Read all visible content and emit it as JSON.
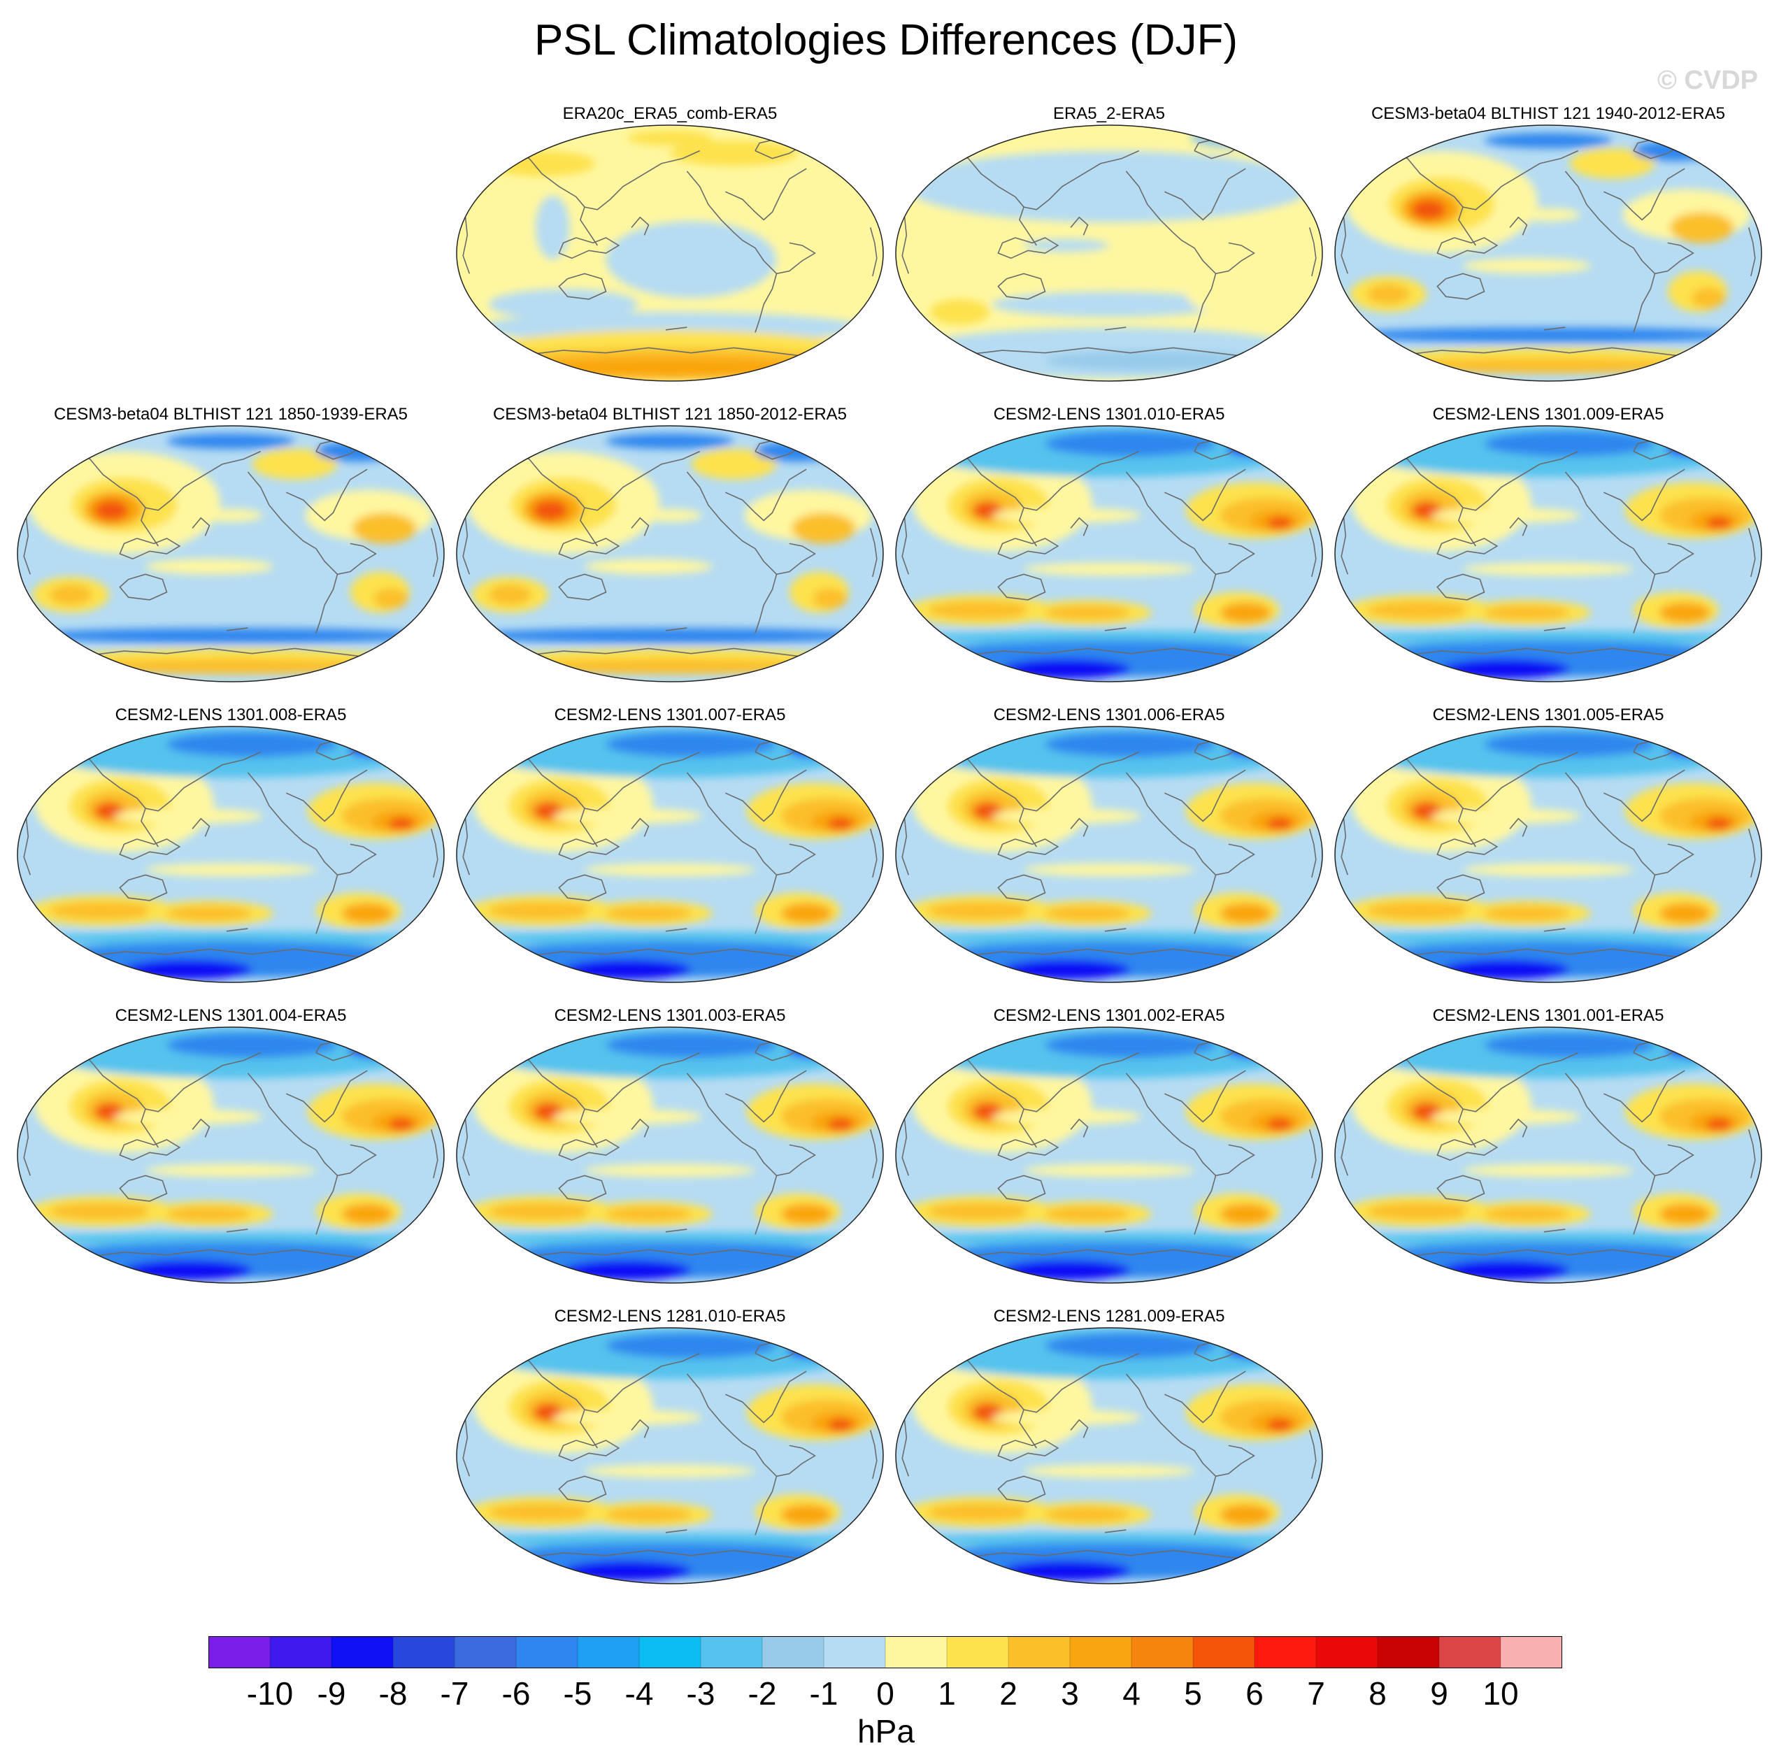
{
  "figure": {
    "title": "PSL Climatologies Differences (DJF)",
    "watermark": "© CVDP"
  },
  "panels": [
    {
      "id": "era20c",
      "title": "ERA20c_ERA5_comb-ERA5",
      "style": "reanalysis"
    },
    {
      "id": "era5_2",
      "title": "ERA5_2-ERA5",
      "style": "reanalysis2"
    },
    {
      "id": "cesm3a",
      "title": "CESM3-beta04 BLTHIST 121 1940-2012-ERA5",
      "style": "cesm3"
    },
    {
      "id": "cesm3b",
      "title": "CESM3-beta04 BLTHIST 121 1850-1939-ERA5",
      "style": "cesm3"
    },
    {
      "id": "cesm3c",
      "title": "CESM3-beta04 BLTHIST 121 1850-2012-ERA5",
      "style": "cesm3"
    },
    {
      "id": "l010",
      "title": "CESM2-LENS 1301.010-ERA5",
      "style": "cesm2"
    },
    {
      "id": "l009",
      "title": "CESM2-LENS 1301.009-ERA5",
      "style": "cesm2"
    },
    {
      "id": "l008",
      "title": "CESM2-LENS 1301.008-ERA5",
      "style": "cesm2"
    },
    {
      "id": "l007",
      "title": "CESM2-LENS 1301.007-ERA5",
      "style": "cesm2"
    },
    {
      "id": "l006",
      "title": "CESM2-LENS 1301.006-ERA5",
      "style": "cesm2"
    },
    {
      "id": "l005",
      "title": "CESM2-LENS 1301.005-ERA5",
      "style": "cesm2"
    },
    {
      "id": "l004",
      "title": "CESM2-LENS 1301.004-ERA5",
      "style": "cesm2"
    },
    {
      "id": "l003",
      "title": "CESM2-LENS 1301.003-ERA5",
      "style": "cesm2"
    },
    {
      "id": "l002",
      "title": "CESM2-LENS 1301.002-ERA5",
      "style": "cesm2"
    },
    {
      "id": "l001",
      "title": "CESM2-LENS 1301.001-ERA5",
      "style": "cesm2"
    },
    {
      "id": "k010",
      "title": "CESM2-LENS 1281.010-ERA5",
      "style": "cesm2"
    },
    {
      "id": "k009",
      "title": "CESM2-LENS 1281.009-ERA5",
      "style": "cesm2"
    }
  ],
  "colorbar": {
    "unit": "hPa",
    "labels": [
      "-10",
      "-9",
      "-8",
      "-7",
      "-6",
      "-5",
      "-4",
      "-3",
      "-2",
      "-1",
      "0",
      "1",
      "2",
      "3",
      "4",
      "5",
      "6",
      "7",
      "8",
      "9",
      "10"
    ],
    "colors": [
      "#7b1fe8",
      "#3f18ee",
      "#1010f5",
      "#2847dd",
      "#3a6ade",
      "#2f86ee",
      "#1fa0f5",
      "#0bbcf2",
      "#55c3ee",
      "#98cbea",
      "#b6dcf3",
      "#fff7a0",
      "#fde24e",
      "#fbbf2a",
      "#f9a511",
      "#f6850d",
      "#f25508",
      "#ff1a0f",
      "#ea0808",
      "#c90303",
      "#db4545",
      "#f9b0b0"
    ]
  },
  "palette": {
    "blue_dark": "#1010f5",
    "blue": "#2f86ee",
    "blue_mid": "#55c3ee",
    "blue_light": "#98cbea",
    "blue_pale": "#b6dcf3",
    "yellow_pale": "#fff7a0",
    "yellow": "#fde24e",
    "orange_light": "#fbbf2a",
    "orange": "#f9a511",
    "orange_dark": "#f6850d",
    "red": "#f25508",
    "red_dark": "#ea0808"
  }
}
